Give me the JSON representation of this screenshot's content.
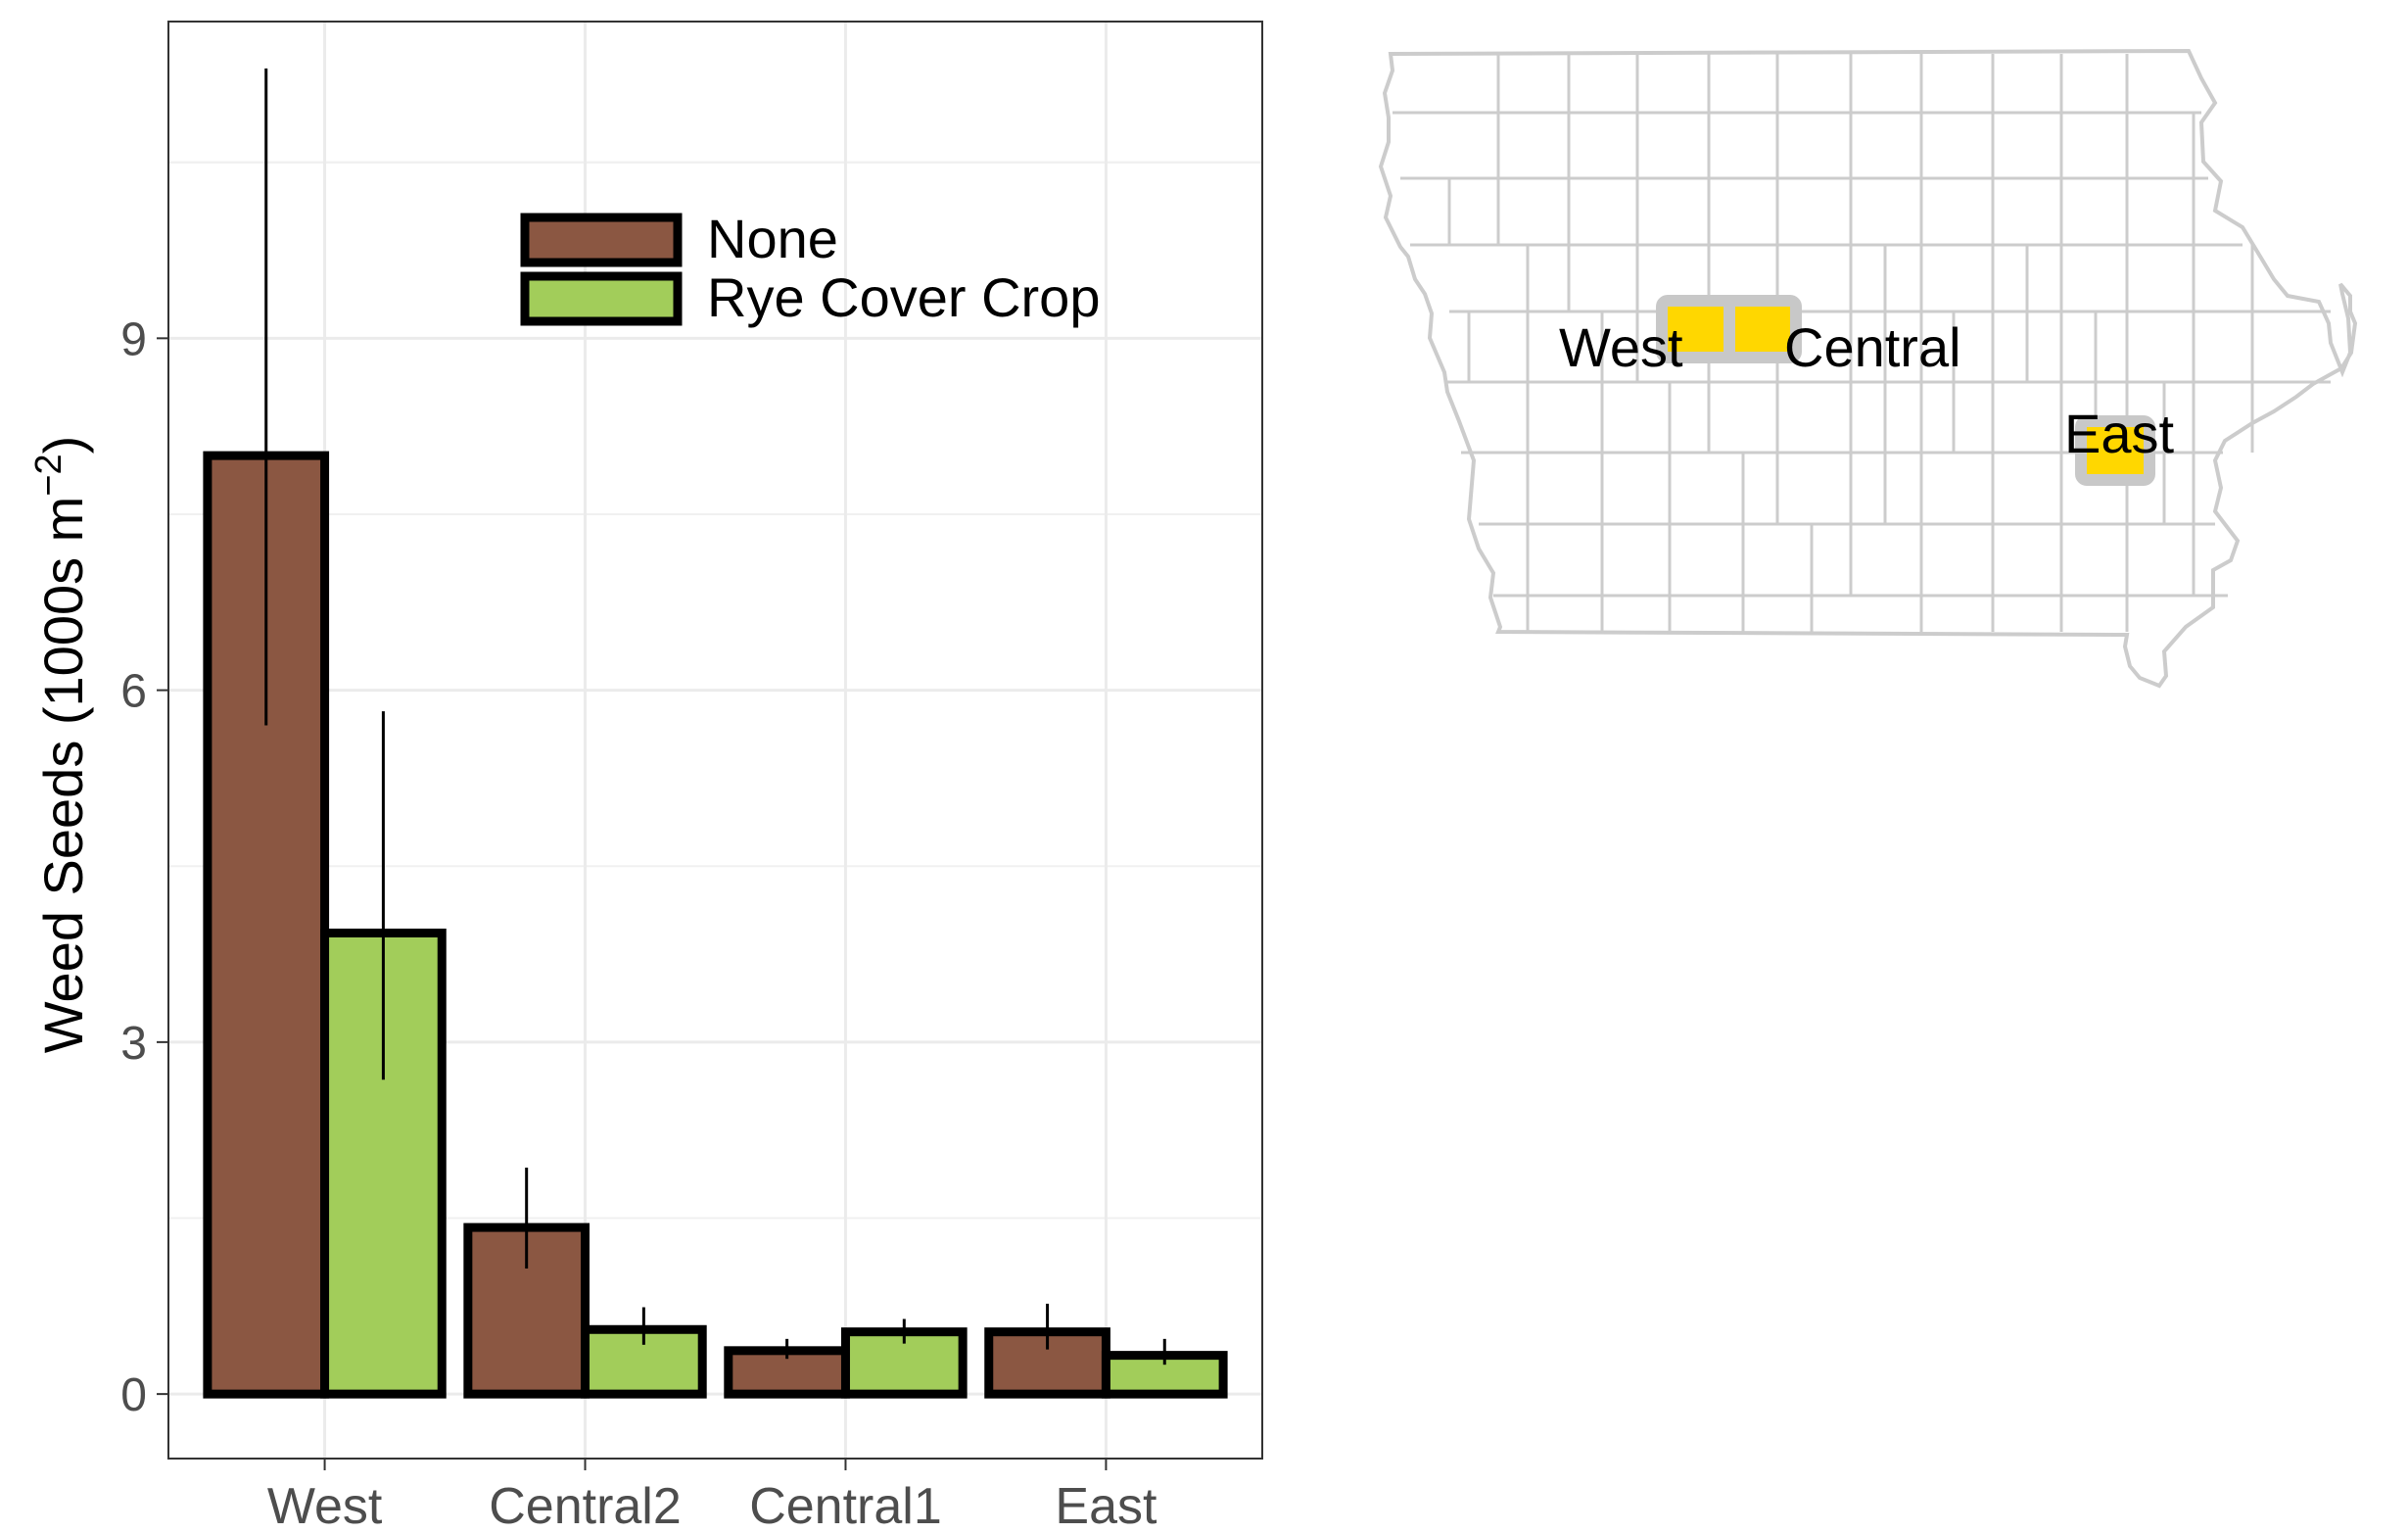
{
  "chart_data": [
    {
      "type": "bar",
      "title": "",
      "xlabel": "",
      "ylabel": "Weed Seeds (1000s m",
      "ylabel_sup": "−2",
      "ylabel_close": ")",
      "categories": [
        "West",
        "Central2",
        "Central1",
        "East"
      ],
      "ylim": [
        -0.55,
        11.7
      ],
      "yticks": [
        0,
        3,
        6,
        9
      ],
      "ytick_labels": [
        "0",
        "3",
        "6",
        "9"
      ],
      "grid": true,
      "legend_position": "top-right",
      "series": [
        {
          "name": "None",
          "color": "#8B5742",
          "values": [
            8.0,
            1.42,
            0.37,
            0.53
          ],
          "error_low": [
            5.7,
            1.07,
            0.3,
            0.38
          ],
          "error_high": [
            11.3,
            1.93,
            0.47,
            0.77
          ]
        },
        {
          "name": "Rye Cover Crop",
          "color": "#A2CD5A",
          "values": [
            3.93,
            0.55,
            0.53,
            0.33
          ],
          "error_low": [
            2.68,
            0.42,
            0.43,
            0.25
          ],
          "error_high": [
            5.82,
            0.74,
            0.64,
            0.47
          ]
        }
      ]
    }
  ],
  "map": {
    "region": "Iowa",
    "outline_color": "#cccccc",
    "site_color": "#FFD700",
    "site_border_color": "#c8c8c8",
    "labels": [
      "West",
      "Central",
      "East"
    ]
  }
}
